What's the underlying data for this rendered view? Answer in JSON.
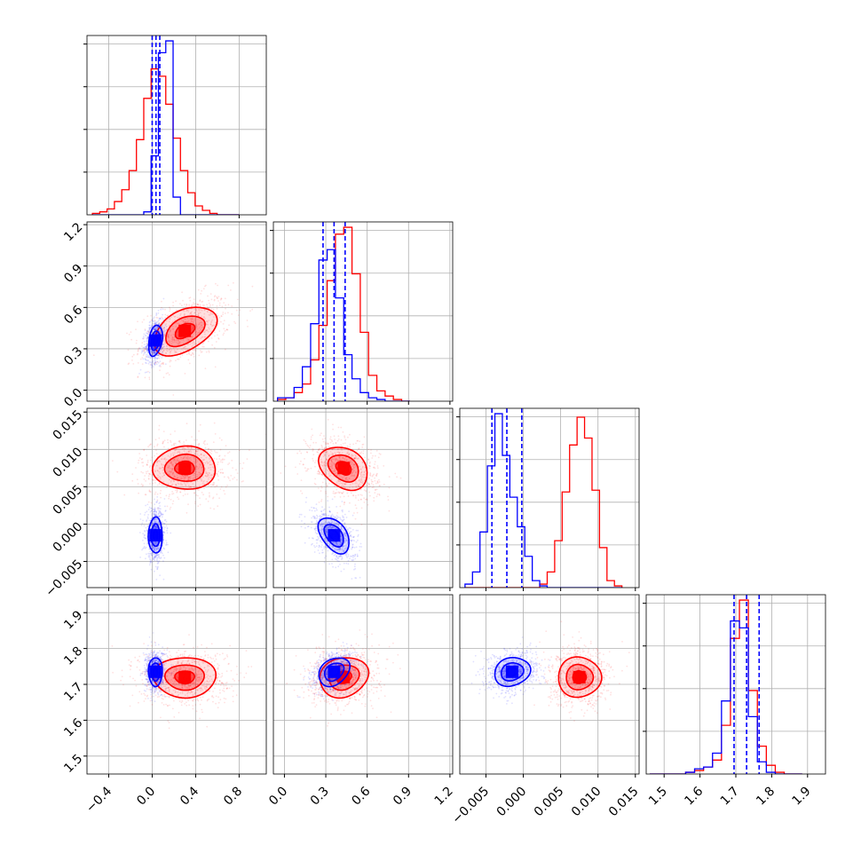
{
  "chart_data": {
    "type": "corner",
    "grid": true,
    "parameters": [
      {
        "range": [
          -0.6,
          1.05
        ],
        "ticks": [
          -0.4,
          0.0,
          0.4,
          0.8
        ],
        "tick_labels": [
          "−0.4",
          "0.0",
          "0.4",
          "0.8"
        ]
      },
      {
        "range": [
          -0.08,
          1.22
        ],
        "ticks": [
          0.0,
          0.3,
          0.6,
          0.9,
          1.2
        ],
        "tick_labels": [
          "0.0",
          "0.3",
          "0.6",
          "0.9",
          "1.2"
        ]
      },
      {
        "range": [
          -0.0085,
          0.0155
        ],
        "ticks": [
          -0.005,
          0.0,
          0.005,
          0.01,
          0.015
        ],
        "tick_labels": [
          "−0.005",
          "0.000",
          "0.005",
          "0.010",
          "0.015"
        ]
      },
      {
        "range": [
          1.45,
          1.95
        ],
        "ticks": [
          1.5,
          1.6,
          1.7,
          1.8,
          1.9
        ],
        "tick_labels": [
          "1.5",
          "1.6",
          "1.7",
          "1.8",
          "1.9"
        ]
      }
    ],
    "series": [
      {
        "color": "#ff0000",
        "means": [
          0.3,
          0.43,
          0.0075,
          1.72
        ],
        "sds": [
          0.18,
          0.11,
          0.0018,
          0.035
        ],
        "corr": [
          [
            1,
            0.45,
            0,
            0
          ],
          [
            0.45,
            1,
            -0.3,
            0.15
          ],
          [
            0,
            -0.3,
            1,
            0
          ],
          [
            0,
            0.15,
            0,
            1
          ]
        ],
        "hist": [
          {
            "start": -0.55,
            "step": 0.0675,
            "values": [
              1,
              2,
              4,
              9,
              17,
              30,
              51,
              79,
              99,
              94,
              75,
              52,
              30,
              15,
              6,
              3,
              1,
              0,
              0,
              0
            ]
          },
          {
            "start": -0.05,
            "step": 0.06,
            "values": [
              1,
              2,
              5,
              10,
              24,
              44,
              70,
              97,
              101,
              74,
              40,
              15,
              6,
              3,
              1,
              0
            ]
          },
          {
            "start": -0.0078,
            "step": 0.001,
            "values": [
              0,
              0,
              0,
              0,
              0,
              0,
              0,
              0,
              0,
              0,
              2,
              9,
              27,
              55,
              82,
              98,
              86,
              56,
              23,
              4,
              1
            ]
          },
          {
            "start": 1.46,
            "step": 0.025,
            "values": [
              0,
              0,
              0,
              0,
              1,
              2,
              4,
              8,
              28,
              78,
              100,
              48,
              16,
              5,
              1,
              0,
              0
            ]
          }
        ],
        "contour_levels": [
          0.5,
          1.0,
          1.6
        ]
      },
      {
        "color": "#0000ff",
        "means": [
          0.03,
          0.36,
          -0.0015,
          1.735
        ],
        "sds": [
          0.04,
          0.07,
          0.0015,
          0.025
        ],
        "corr": [
          [
            1,
            0.3,
            0,
            0
          ],
          [
            0.3,
            1,
            -0.45,
            0.3
          ],
          [
            0,
            -0.45,
            1,
            0.15
          ],
          [
            0,
            0.3,
            0.15,
            1
          ]
        ],
        "hist": [
          {
            "start": -0.55,
            "step": 0.0675,
            "values": [
              0,
              0,
              0,
              0,
              0,
              0,
              0,
              2,
              40,
              110,
              118,
              12,
              0,
              0,
              0,
              0,
              0,
              0,
              0,
              0
            ]
          },
          {
            "start": -0.05,
            "step": 0.06,
            "values": [
              2,
              2,
              8,
              20,
              45,
              82,
              88,
              60,
              27,
              13,
              5,
              2,
              1,
              0,
              0,
              0
            ]
          },
          {
            "start": -0.0078,
            "step": 0.001,
            "values": [
              2,
              9,
              32,
              70,
              100,
              76,
              52,
              35,
              18,
              4,
              1,
              0,
              0,
              0,
              0,
              0,
              0,
              0,
              0,
              0,
              0
            ]
          },
          {
            "start": 1.46,
            "step": 0.025,
            "values": [
              0,
              0,
              0,
              0,
              1,
              3,
              4,
              12,
              42,
              88,
              84,
              33,
              7,
              1,
              0,
              0,
              0
            ]
          }
        ],
        "quantiles": [
          [
            0.0,
            0.035,
            0.07
          ],
          [
            0.28,
            0.36,
            0.44
          ],
          [
            -0.0042,
            -0.0022,
            -0.0002
          ],
          [
            1.695,
            1.73,
            1.765
          ]
        ],
        "contour_levels": [
          0.5,
          1.0,
          1.6
        ]
      }
    ]
  }
}
